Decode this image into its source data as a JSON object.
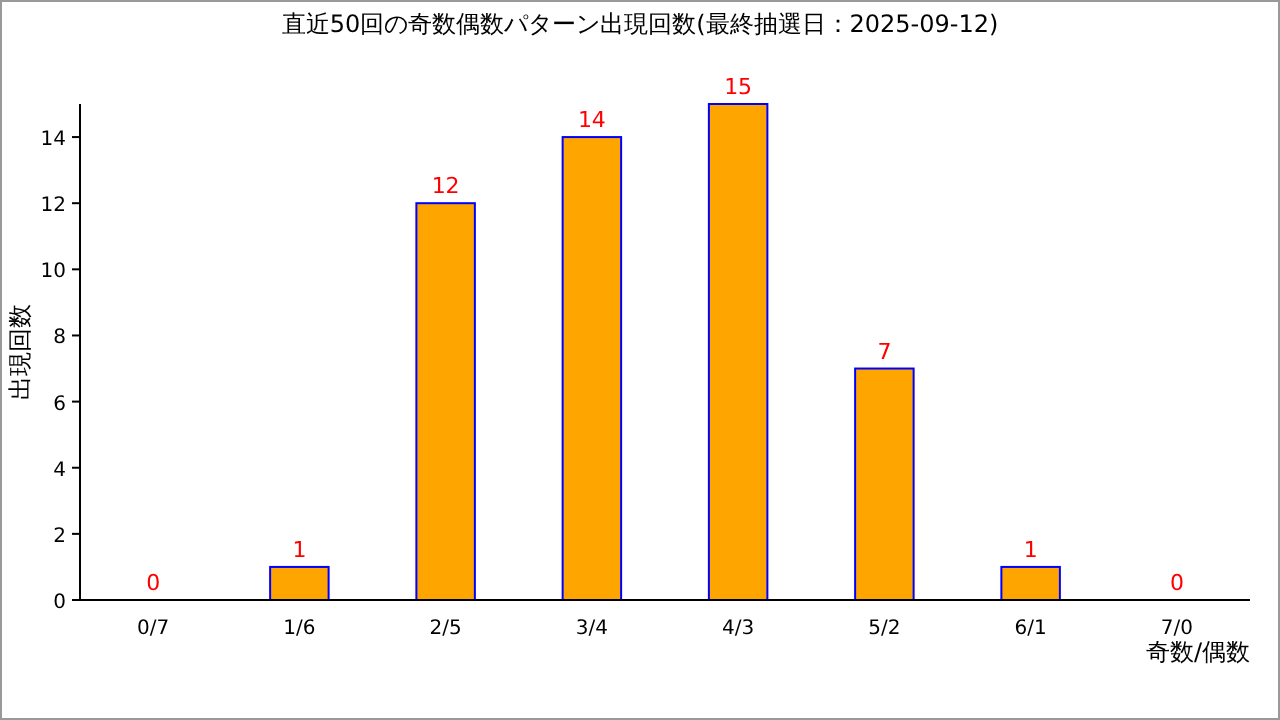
{
  "chart_data": {
    "type": "bar",
    "title": "直近50回の奇数偶数パターン出現回数(最終抽選日：2025-09-12)",
    "xlabel": "奇数/偶数",
    "ylabel": "出現回数",
    "categories": [
      "0/7",
      "1/6",
      "2/5",
      "3/4",
      "4/3",
      "5/2",
      "6/1",
      "7/0"
    ],
    "values": [
      0,
      1,
      12,
      14,
      15,
      7,
      1,
      0
    ],
    "color": "#ffa500",
    "ylim": [
      0,
      15
    ],
    "yticks": [
      0,
      2,
      4,
      6,
      8,
      10,
      12,
      14
    ],
    "grid": false,
    "data_labels": true
  }
}
